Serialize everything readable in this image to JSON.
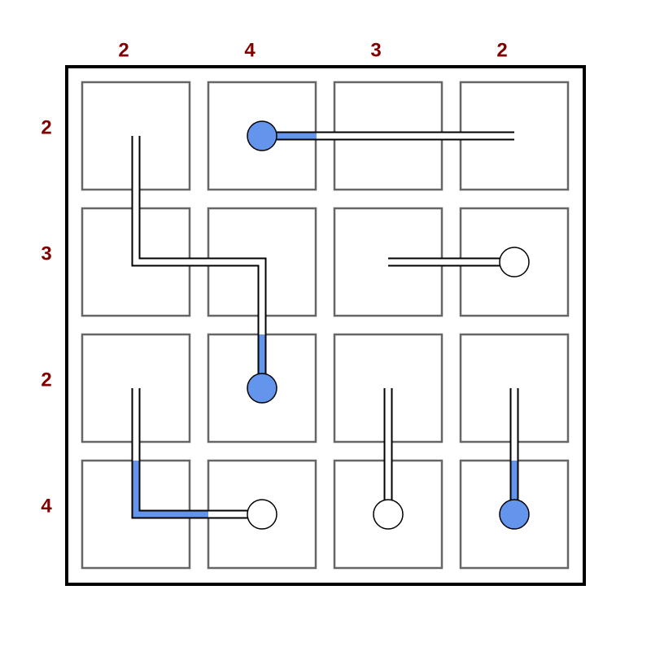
{
  "puzzle": {
    "grid_size": 4,
    "column_clues": [
      "2",
      "4",
      "3",
      "2"
    ],
    "row_clues": [
      "2",
      "3",
      "2",
      "4"
    ],
    "colors": {
      "clue_text": "#800000",
      "frame": "#000000",
      "cell_border": "#666666",
      "pipe_outline": "#000000",
      "pipe_empty": "#ffffff",
      "fill": "#6495ED"
    },
    "pipes": [
      {
        "name": "pipe-1",
        "bulb": {
          "row": 0,
          "col": 1,
          "filled": true
        },
        "path": [
          [
            0,
            1
          ],
          [
            0,
            3
          ]
        ],
        "filled_levels": 1,
        "fill_direction": "right"
      },
      {
        "name": "pipe-2",
        "bulb": {
          "row": 2,
          "col": 1,
          "filled": true
        },
        "path": [
          [
            0,
            0
          ],
          [
            1,
            0
          ],
          [
            1,
            1
          ],
          [
            2,
            1
          ]
        ],
        "filled_levels": 1,
        "fill_direction": "up"
      },
      {
        "name": "pipe-3",
        "bulb": {
          "row": 1,
          "col": 3,
          "filled": false
        },
        "path": [
          [
            1,
            2
          ],
          [
            1,
            3
          ]
        ],
        "filled_levels": 0,
        "fill_direction": "left"
      },
      {
        "name": "pipe-4",
        "bulb": {
          "row": 3,
          "col": 1,
          "filled": false
        },
        "path": [
          [
            2,
            0
          ],
          [
            3,
            0
          ],
          [
            3,
            1
          ]
        ],
        "filled_levels": 2,
        "fill_direction": "up"
      },
      {
        "name": "pipe-5",
        "bulb": {
          "row": 3,
          "col": 2,
          "filled": false
        },
        "path": [
          [
            2,
            2
          ],
          [
            3,
            2
          ]
        ],
        "filled_levels": 0,
        "fill_direction": "up"
      },
      {
        "name": "pipe-6",
        "bulb": {
          "row": 3,
          "col": 3,
          "filled": true
        },
        "path": [
          [
            2,
            3
          ],
          [
            3,
            3
          ]
        ],
        "filled_levels": 1,
        "fill_direction": "up"
      }
    ]
  }
}
